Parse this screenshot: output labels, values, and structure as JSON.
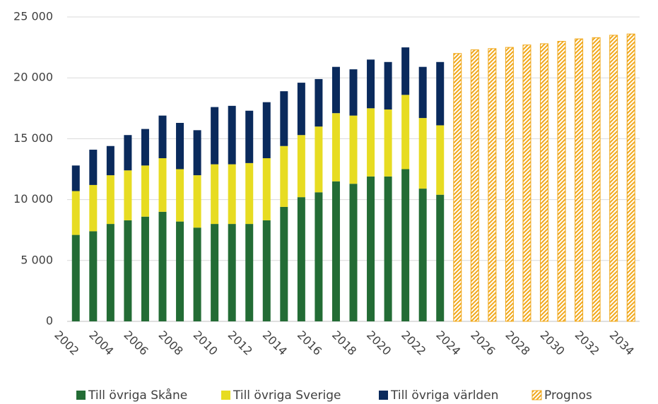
{
  "chart_data": {
    "type": "stacked_bar",
    "categories": [
      "2002",
      null,
      "2004",
      null,
      "2006",
      null,
      "2008",
      null,
      "2010",
      null,
      "2012",
      null,
      "2014",
      null,
      "2016",
      null,
      "2018",
      null,
      "2020",
      null,
      "2022",
      null,
      "2024",
      null,
      "2026",
      null,
      "2028",
      null,
      "2030",
      null,
      "2032",
      null,
      "2034"
    ],
    "series": [
      {
        "name": "Till övriga Skåne",
        "color": "#236c35",
        "values": [
          7100,
          7400,
          8000,
          8300,
          8600,
          9000,
          8200,
          7700,
          8000,
          8000,
          8000,
          8300,
          9400,
          10200,
          10600,
          11500,
          11300,
          11900,
          11900,
          12500,
          10900,
          10400,
          null,
          null,
          null,
          null,
          null,
          null,
          null,
          null,
          null,
          null,
          null
        ]
      },
      {
        "name": "Till övriga Sverige",
        "color": "#e7dc22",
        "values": [
          3600,
          3800,
          4000,
          4100,
          4200,
          4400,
          4300,
          4300,
          4900,
          4900,
          5000,
          5100,
          5000,
          5100,
          5400,
          5600,
          5600,
          5600,
          5500,
          6100,
          5800,
          5700,
          null,
          null,
          null,
          null,
          null,
          null,
          null,
          null,
          null,
          null,
          null
        ]
      },
      {
        "name": "Till övriga världen",
        "color": "#0a2a5c",
        "values": [
          2100,
          2900,
          2400,
          2900,
          3000,
          3500,
          3800,
          3700,
          4700,
          4800,
          4300,
          4600,
          4500,
          4300,
          3900,
          3800,
          3800,
          4000,
          3900,
          3900,
          4200,
          5200,
          null,
          null,
          null,
          null,
          null,
          null,
          null,
          null,
          null,
          null,
          null
        ]
      },
      {
        "name": "Prognos",
        "color": "#f0a81c",
        "hatched": true,
        "values": [
          null,
          null,
          null,
          null,
          null,
          null,
          null,
          null,
          null,
          null,
          null,
          null,
          null,
          null,
          null,
          null,
          null,
          null,
          null,
          null,
          null,
          null,
          22000,
          22300,
          22400,
          22500,
          22700,
          22800,
          23000,
          23200,
          23300,
          23500,
          23600
        ]
      }
    ],
    "ylim": [
      0,
      25000
    ],
    "yticks": [
      0,
      {
        "value": 5000,
        "label": "5 000"
      },
      {
        "value": 10000,
        "label": "10 000"
      },
      {
        "value": 15000,
        "label": "15 000"
      },
      {
        "value": 20000,
        "label": "20 000"
      },
      {
        "value": 25000,
        "label": "25 000"
      }
    ],
    "grid": true,
    "legend": "bottom"
  }
}
